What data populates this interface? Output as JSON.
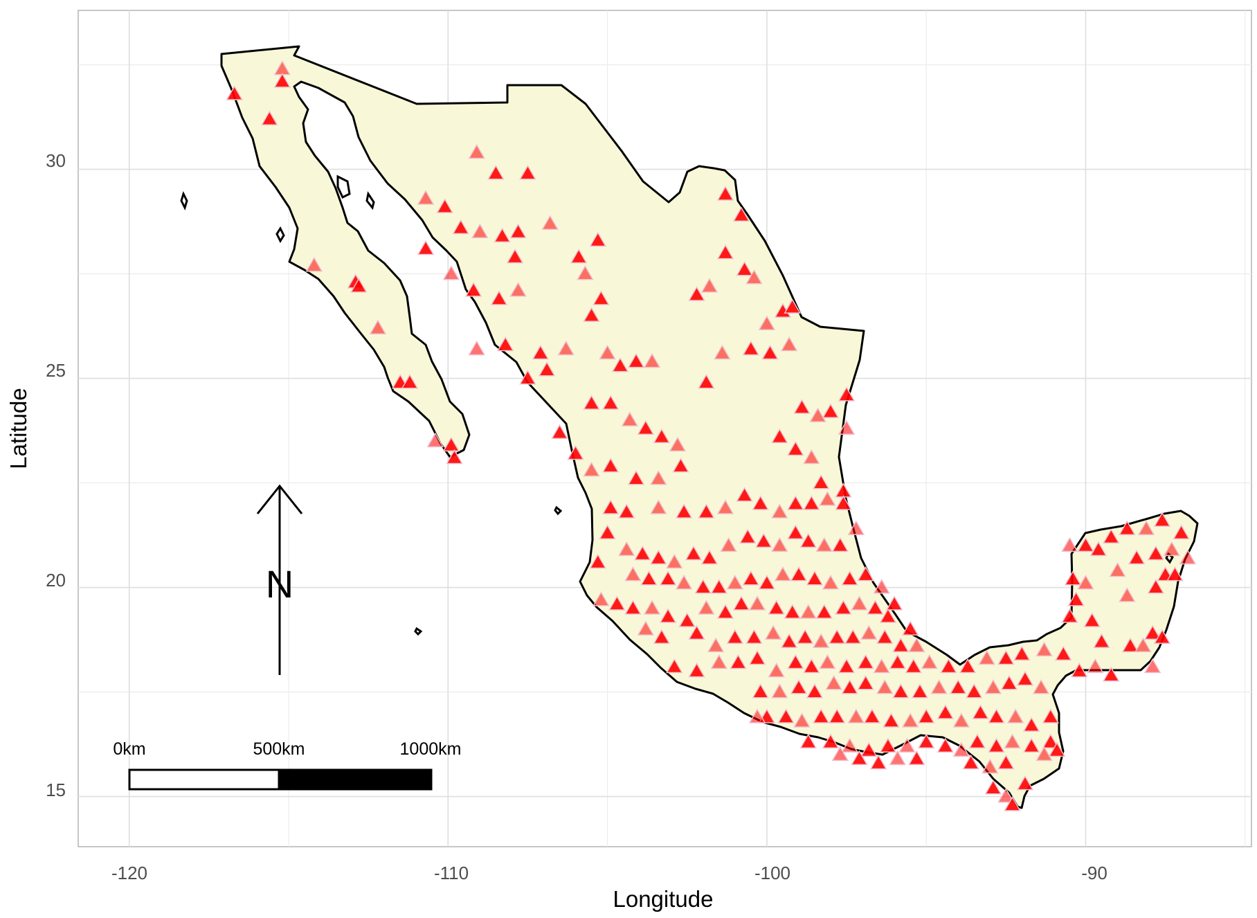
{
  "chart_data": {
    "type": "map",
    "region": "Mexico",
    "xlabel": "Longitude",
    "ylabel": "Latitude",
    "xlim": [
      -121.6,
      -84.8
    ],
    "ylim": [
      13.8,
      33.8
    ],
    "x_ticks": [
      -120,
      -110,
      -100,
      -90
    ],
    "y_ticks": [
      15,
      20,
      25,
      30
    ],
    "x_tick_labels": [
      "-120",
      "-110",
      "-100",
      "-90"
    ],
    "y_tick_labels": [
      "15",
      "20",
      "25",
      "30"
    ],
    "grid": true,
    "land_fill": "#f8f8d8",
    "border_color": "#000000",
    "marker": {
      "shape": "triangle",
      "color": "#ff0000",
      "outline": "#f0c0d0"
    },
    "scale_bar": {
      "labels": [
        "0km",
        "500km",
        "1000km"
      ]
    },
    "north_arrow": {
      "label": "N"
    },
    "points": [
      [
        -116.7,
        31.8
      ],
      [
        -115.2,
        32.4
      ],
      [
        -115.2,
        32.1
      ],
      [
        -115.6,
        31.2
      ],
      [
        -114.2,
        27.7
      ],
      [
        -112.9,
        27.3
      ],
      [
        -112.8,
        27.2
      ],
      [
        -112.2,
        26.2
      ],
      [
        -111.5,
        24.9
      ],
      [
        -111.2,
        24.9
      ],
      [
        -110.4,
        23.5
      ],
      [
        -109.9,
        23.4
      ],
      [
        -109.8,
        23.1
      ],
      [
        -109.1,
        30.4
      ],
      [
        -108.5,
        29.9
      ],
      [
        -107.5,
        29.9
      ],
      [
        -110.7,
        29.3
      ],
      [
        -110.1,
        29.1
      ],
      [
        -109.6,
        28.6
      ],
      [
        -109.0,
        28.5
      ],
      [
        -108.3,
        28.4
      ],
      [
        -107.8,
        28.5
      ],
      [
        -106.8,
        28.7
      ],
      [
        -107.9,
        27.9
      ],
      [
        -110.7,
        28.1
      ],
      [
        -109.9,
        27.5
      ],
      [
        -109.2,
        27.1
      ],
      [
        -108.4,
        26.9
      ],
      [
        -107.8,
        27.1
      ],
      [
        -105.9,
        27.9
      ],
      [
        -105.3,
        28.3
      ],
      [
        -105.7,
        27.5
      ],
      [
        -105.2,
        26.9
      ],
      [
        -105.5,
        26.5
      ],
      [
        -109.1,
        25.7
      ],
      [
        -108.2,
        25.8
      ],
      [
        -107.1,
        25.6
      ],
      [
        -106.3,
        25.7
      ],
      [
        -107.5,
        25.0
      ],
      [
        -106.9,
        25.2
      ],
      [
        -105.0,
        25.6
      ],
      [
        -104.6,
        25.3
      ],
      [
        -104.1,
        25.4
      ],
      [
        -103.6,
        25.4
      ],
      [
        -105.5,
        24.4
      ],
      [
        -104.9,
        24.4
      ],
      [
        -104.3,
        24.0
      ],
      [
        -103.8,
        23.8
      ],
      [
        -103.3,
        23.6
      ],
      [
        -102.8,
        23.4
      ],
      [
        -106.5,
        23.7
      ],
      [
        -106.0,
        23.2
      ],
      [
        -105.5,
        22.8
      ],
      [
        -104.9,
        22.9
      ],
      [
        -104.1,
        22.6
      ],
      [
        -103.4,
        22.6
      ],
      [
        -102.7,
        22.9
      ],
      [
        -102.2,
        27.0
      ],
      [
        -101.8,
        27.2
      ],
      [
        -101.3,
        28.0
      ],
      [
        -100.7,
        27.6
      ],
      [
        -100.4,
        27.4
      ],
      [
        -101.3,
        29.4
      ],
      [
        -100.8,
        28.9
      ],
      [
        -100.0,
        26.3
      ],
      [
        -99.5,
        26.6
      ],
      [
        -99.2,
        26.7
      ],
      [
        -101.4,
        25.6
      ],
      [
        -100.5,
        25.7
      ],
      [
        -99.9,
        25.6
      ],
      [
        -99.3,
        25.8
      ],
      [
        -101.9,
        24.9
      ],
      [
        -98.9,
        24.3
      ],
      [
        -98.4,
        24.1
      ],
      [
        -98.0,
        24.2
      ],
      [
        -97.5,
        24.6
      ],
      [
        -97.5,
        23.8
      ],
      [
        -99.6,
        23.6
      ],
      [
        -99.1,
        23.3
      ],
      [
        -98.6,
        23.1
      ],
      [
        -104.9,
        21.9
      ],
      [
        -104.4,
        21.8
      ],
      [
        -103.4,
        21.9
      ],
      [
        -102.6,
        21.8
      ],
      [
        -101.9,
        21.8
      ],
      [
        -101.3,
        21.9
      ],
      [
        -100.7,
        22.2
      ],
      [
        -100.2,
        22.0
      ],
      [
        -99.6,
        21.8
      ],
      [
        -99.1,
        22.0
      ],
      [
        -98.6,
        22.0
      ],
      [
        -98.1,
        22.1
      ],
      [
        -97.6,
        22.3
      ],
      [
        -105.0,
        21.3
      ],
      [
        -104.4,
        20.9
      ],
      [
        -103.9,
        20.8
      ],
      [
        -103.4,
        20.7
      ],
      [
        -102.9,
        20.6
      ],
      [
        -102.3,
        20.8
      ],
      [
        -101.8,
        20.7
      ],
      [
        -101.2,
        21.0
      ],
      [
        -100.6,
        21.2
      ],
      [
        -100.1,
        21.1
      ],
      [
        -99.6,
        21.0
      ],
      [
        -99.1,
        21.3
      ],
      [
        -98.7,
        21.1
      ],
      [
        -98.2,
        21.0
      ],
      [
        -97.7,
        21.0
      ],
      [
        -105.3,
        20.6
      ],
      [
        -104.2,
        20.3
      ],
      [
        -103.7,
        20.2
      ],
      [
        -103.1,
        20.2
      ],
      [
        -102.6,
        20.1
      ],
      [
        -102.0,
        20.0
      ],
      [
        -101.5,
        20.0
      ],
      [
        -101.0,
        20.1
      ],
      [
        -100.5,
        20.2
      ],
      [
        -100.0,
        20.1
      ],
      [
        -99.5,
        20.3
      ],
      [
        -99.0,
        20.3
      ],
      [
        -98.5,
        20.2
      ],
      [
        -98.0,
        20.1
      ],
      [
        -97.4,
        20.2
      ],
      [
        -96.9,
        20.3
      ],
      [
        -105.2,
        19.7
      ],
      [
        -104.7,
        19.6
      ],
      [
        -104.2,
        19.5
      ],
      [
        -103.6,
        19.5
      ],
      [
        -103.1,
        19.3
      ],
      [
        -102.5,
        19.2
      ],
      [
        -101.9,
        19.5
      ],
      [
        -101.3,
        19.4
      ],
      [
        -100.8,
        19.6
      ],
      [
        -100.3,
        19.6
      ],
      [
        -99.7,
        19.5
      ],
      [
        -99.2,
        19.4
      ],
      [
        -98.7,
        19.4
      ],
      [
        -98.2,
        19.4
      ],
      [
        -97.6,
        19.5
      ],
      [
        -97.1,
        19.6
      ],
      [
        -96.6,
        19.5
      ],
      [
        -96.2,
        19.3
      ],
      [
        -103.8,
        19.0
      ],
      [
        -103.3,
        18.8
      ],
      [
        -102.2,
        18.9
      ],
      [
        -101.6,
        18.6
      ],
      [
        -101.0,
        18.8
      ],
      [
        -100.4,
        18.8
      ],
      [
        -99.8,
        18.9
      ],
      [
        -99.3,
        18.7
      ],
      [
        -98.8,
        18.8
      ],
      [
        -98.3,
        18.7
      ],
      [
        -97.8,
        18.8
      ],
      [
        -97.3,
        18.8
      ],
      [
        -96.8,
        18.9
      ],
      [
        -96.3,
        18.8
      ],
      [
        -95.8,
        18.6
      ],
      [
        -95.3,
        18.6
      ],
      [
        -102.9,
        18.1
      ],
      [
        -102.2,
        18.0
      ],
      [
        -101.5,
        18.2
      ],
      [
        -100.9,
        18.2
      ],
      [
        -100.3,
        18.3
      ],
      [
        -99.7,
        18.0
      ],
      [
        -99.1,
        18.2
      ],
      [
        -98.6,
        18.1
      ],
      [
        -98.1,
        18.2
      ],
      [
        -97.5,
        18.1
      ],
      [
        -96.9,
        18.2
      ],
      [
        -96.4,
        18.1
      ],
      [
        -95.9,
        18.2
      ],
      [
        -95.4,
        18.1
      ],
      [
        -94.9,
        18.2
      ],
      [
        -94.3,
        18.1
      ],
      [
        -93.7,
        18.1
      ],
      [
        -93.1,
        18.3
      ],
      [
        -92.5,
        18.3
      ],
      [
        -92.0,
        18.4
      ],
      [
        -91.3,
        18.5
      ],
      [
        -90.7,
        18.4
      ],
      [
        -100.2,
        17.5
      ],
      [
        -99.6,
        17.5
      ],
      [
        -99.0,
        17.6
      ],
      [
        -98.5,
        17.5
      ],
      [
        -97.9,
        17.7
      ],
      [
        -97.4,
        17.6
      ],
      [
        -96.9,
        17.7
      ],
      [
        -96.3,
        17.6
      ],
      [
        -95.8,
        17.5
      ],
      [
        -95.2,
        17.5
      ],
      [
        -94.6,
        17.6
      ],
      [
        -94.0,
        17.6
      ],
      [
        -93.5,
        17.5
      ],
      [
        -92.9,
        17.6
      ],
      [
        -92.4,
        17.7
      ],
      [
        -91.9,
        17.8
      ],
      [
        -91.4,
        17.6
      ],
      [
        -100.0,
        16.9
      ],
      [
        -99.4,
        16.9
      ],
      [
        -98.9,
        16.8
      ],
      [
        -98.3,
        16.9
      ],
      [
        -97.8,
        16.9
      ],
      [
        -97.2,
        16.9
      ],
      [
        -96.7,
        16.9
      ],
      [
        -96.1,
        16.8
      ],
      [
        -95.5,
        16.8
      ],
      [
        -95.0,
        16.9
      ],
      [
        -94.4,
        17.0
      ],
      [
        -93.9,
        16.8
      ],
      [
        -93.3,
        17.0
      ],
      [
        -92.8,
        16.9
      ],
      [
        -92.2,
        16.9
      ],
      [
        -91.7,
        16.7
      ],
      [
        -91.1,
        16.9
      ],
      [
        -100.3,
        16.9
      ],
      [
        -98.7,
        16.3
      ],
      [
        -98.0,
        16.3
      ],
      [
        -97.4,
        16.2
      ],
      [
        -96.8,
        16.1
      ],
      [
        -96.2,
        16.2
      ],
      [
        -95.6,
        16.2
      ],
      [
        -95.0,
        16.3
      ],
      [
        -94.4,
        16.2
      ],
      [
        -93.9,
        16.1
      ],
      [
        -93.4,
        16.3
      ],
      [
        -92.8,
        16.2
      ],
      [
        -92.3,
        16.3
      ],
      [
        -91.7,
        16.2
      ],
      [
        -91.1,
        16.3
      ],
      [
        -97.7,
        16.0
      ],
      [
        -97.1,
        15.9
      ],
      [
        -96.5,
        15.8
      ],
      [
        -95.9,
        15.9
      ],
      [
        -95.3,
        15.9
      ],
      [
        -93.6,
        15.8
      ],
      [
        -93.0,
        15.7
      ],
      [
        -92.5,
        15.8
      ],
      [
        -92.9,
        15.2
      ],
      [
        -92.5,
        15.0
      ],
      [
        -92.3,
        14.8
      ],
      [
        -91.9,
        15.3
      ],
      [
        -91.3,
        16.0
      ],
      [
        -90.9,
        16.1
      ],
      [
        -90.2,
        18.0
      ],
      [
        -89.7,
        18.1
      ],
      [
        -89.2,
        17.9
      ],
      [
        -88.6,
        18.6
      ],
      [
        -88.2,
        18.6
      ],
      [
        -87.9,
        18.9
      ],
      [
        -87.6,
        18.8
      ],
      [
        -87.9,
        18.1
      ],
      [
        -89.5,
        18.7
      ],
      [
        -89.8,
        19.2
      ],
      [
        -88.7,
        19.8
      ],
      [
        -87.8,
        20.0
      ],
      [
        -87.5,
        20.3
      ],
      [
        -89.0,
        20.4
      ],
      [
        -88.4,
        20.7
      ],
      [
        -87.8,
        20.8
      ],
      [
        -87.3,
        20.9
      ],
      [
        -89.6,
        20.9
      ],
      [
        -90.0,
        21.0
      ],
      [
        -90.5,
        21.0
      ],
      [
        -89.2,
        21.2
      ],
      [
        -88.7,
        21.4
      ],
      [
        -88.1,
        21.4
      ],
      [
        -87.6,
        21.6
      ],
      [
        -87.0,
        21.3
      ],
      [
        -86.8,
        20.7
      ],
      [
        -87.2,
        20.3
      ],
      [
        -90.4,
        20.2
      ],
      [
        -90.0,
        20.1
      ],
      [
        -90.3,
        19.7
      ],
      [
        -90.5,
        19.3
      ],
      [
        -96.4,
        20.0
      ],
      [
        -96.0,
        19.6
      ],
      [
        -95.5,
        19.0
      ],
      [
        -97.2,
        21.4
      ],
      [
        -98.3,
        22.5
      ],
      [
        -97.6,
        22.0
      ]
    ]
  }
}
